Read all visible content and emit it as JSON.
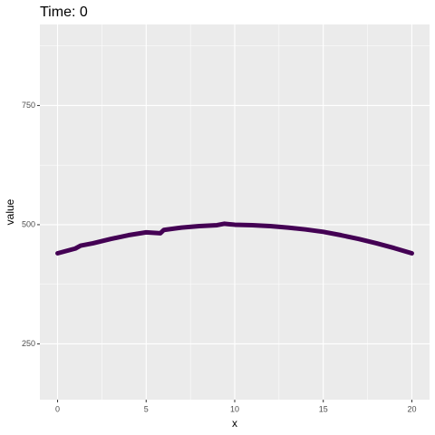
{
  "chart_data": {
    "type": "line",
    "title": "Time: 0",
    "xlabel": "x",
    "ylabel": "value",
    "x": [
      0,
      1,
      1.3,
      2,
      3,
      4,
      5,
      5.8,
      6,
      7,
      8,
      9,
      9.4,
      10,
      11,
      12,
      13,
      14,
      15,
      16,
      17,
      18,
      19,
      20
    ],
    "series": [
      {
        "name": "value",
        "color": "#440154",
        "values": [
          440,
          450,
          456,
          461,
          470,
          478,
          484,
          482,
          489,
          494,
          497,
          499,
          502,
          500,
          499,
          497,
          494,
          490,
          485,
          478,
          470,
          461,
          451,
          440
        ]
      }
    ],
    "xlim": [
      -1,
      21
    ],
    "ylim": [
      133,
      920
    ],
    "xticks": [
      0,
      5,
      10,
      15,
      20
    ],
    "yticks": [
      250,
      500,
      750
    ],
    "xminor": [
      2.5,
      7.5,
      12.5,
      17.5
    ],
    "yminor": [
      375,
      625,
      875
    ],
    "grid": true
  }
}
